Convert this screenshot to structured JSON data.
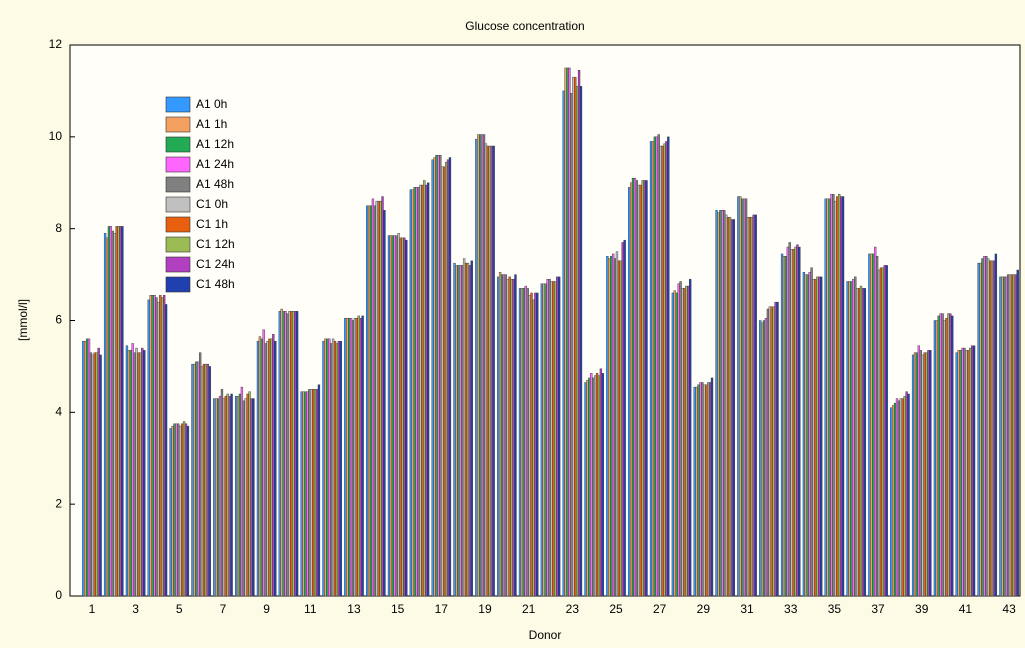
{
  "chart_data": {
    "type": "bar",
    "title": "Glucose concentration",
    "x_label": "Donor",
    "y_label": "[mmol/l]",
    "categories": [
      "1",
      null,
      "3",
      null,
      "5",
      null,
      "7",
      null,
      "9",
      null,
      "11",
      null,
      "13",
      null,
      "15",
      null,
      "17",
      null,
      "19",
      null,
      "21",
      null,
      "23",
      null,
      "25",
      null,
      "27",
      null,
      "29",
      null,
      "31",
      null,
      "33",
      null,
      "35",
      null,
      "37",
      null,
      "39",
      null,
      "41",
      null,
      "43"
    ],
    "ylim": [
      0,
      12
    ],
    "yticks": [
      0,
      2,
      4,
      6,
      8,
      10,
      12
    ],
    "legend": "upper left",
    "series": [
      {
        "name": "A1 0h",
        "color": "#3399ff",
        "values": [
          5.55,
          7.9,
          5.45,
          6.45,
          3.65,
          5.05,
          4.3,
          4.35,
          5.55,
          6.2,
          4.45,
          5.55,
          6.05,
          8.5,
          7.85,
          8.85,
          9.5,
          7.25,
          9.95,
          6.95,
          6.7,
          6.8,
          11.0,
          4.65,
          7.4,
          8.9,
          9.9,
          6.6,
          4.55,
          8.4,
          8.7,
          6.0,
          7.45,
          7.05,
          8.65,
          6.85,
          7.45,
          4.1,
          5.25,
          6.0,
          5.3,
          7.25,
          6.95
        ]
      },
      {
        "name": "A1 1h",
        "color": "#f4a060",
        "values": [
          5.55,
          7.8,
          5.35,
          6.55,
          3.7,
          5.05,
          4.3,
          4.35,
          5.65,
          6.25,
          4.45,
          5.6,
          6.05,
          8.5,
          7.85,
          8.85,
          9.55,
          7.2,
          10.05,
          7.05,
          6.7,
          6.8,
          11.5,
          4.7,
          7.35,
          9.0,
          9.9,
          6.65,
          4.55,
          8.35,
          8.7,
          5.95,
          7.4,
          7.0,
          8.65,
          6.85,
          7.45,
          4.15,
          5.3,
          6.0,
          5.35,
          7.25,
          6.95
        ]
      },
      {
        "name": "A1 12h",
        "color": "#22aa55",
        "values": [
          5.6,
          8.05,
          5.35,
          6.55,
          3.75,
          5.1,
          4.3,
          4.4,
          5.6,
          6.2,
          4.45,
          5.6,
          6.05,
          8.5,
          7.85,
          8.9,
          9.6,
          7.2,
          10.05,
          7.0,
          6.7,
          6.8,
          11.5,
          4.75,
          7.4,
          9.1,
          10.0,
          6.6,
          4.6,
          8.4,
          8.65,
          6.0,
          7.4,
          7.0,
          8.65,
          6.85,
          7.45,
          4.2,
          5.3,
          6.1,
          5.35,
          7.35,
          6.95
        ]
      },
      {
        "name": "A1 24h",
        "color": "#ff66ff",
        "values": [
          5.6,
          8.05,
          5.5,
          6.55,
          3.75,
          5.1,
          4.35,
          4.55,
          5.8,
          6.2,
          4.45,
          5.6,
          6.05,
          8.65,
          7.85,
          8.9,
          9.6,
          7.2,
          10.05,
          7.0,
          6.75,
          6.9,
          11.5,
          4.85,
          7.45,
          9.1,
          10.0,
          6.8,
          4.65,
          8.4,
          8.65,
          6.05,
          7.6,
          7.05,
          8.75,
          6.9,
          7.6,
          4.3,
          5.45,
          6.15,
          5.4,
          7.4,
          6.95
        ]
      },
      {
        "name": "A1 48h",
        "color": "#808080",
        "values": [
          5.3,
          7.95,
          5.3,
          6.5,
          3.75,
          5.3,
          4.5,
          4.25,
          5.5,
          6.15,
          4.5,
          5.5,
          6.0,
          8.5,
          7.85,
          8.9,
          9.6,
          7.2,
          10.05,
          7.0,
          6.7,
          6.9,
          10.95,
          4.75,
          7.35,
          9.05,
          10.05,
          6.85,
          4.65,
          8.4,
          8.65,
          6.25,
          7.7,
          7.15,
          8.75,
          6.95,
          7.4,
          4.25,
          5.35,
          6.15,
          5.4,
          7.4,
          7.0
        ]
      },
      {
        "name": "C1 0h",
        "color": "#c0c0c0",
        "values": [
          5.25,
          7.9,
          5.4,
          6.4,
          3.7,
          5.0,
          4.3,
          4.3,
          5.55,
          6.2,
          4.5,
          5.6,
          6.05,
          8.6,
          7.9,
          8.95,
          9.35,
          7.35,
          9.85,
          6.9,
          6.55,
          6.85,
          11.3,
          4.8,
          7.5,
          8.95,
          9.8,
          6.7,
          4.6,
          8.3,
          8.25,
          6.3,
          7.55,
          6.9,
          8.6,
          6.7,
          7.1,
          4.3,
          5.25,
          6.0,
          5.35,
          7.35,
          7.0
        ]
      },
      {
        "name": "C1 1h",
        "color": "#e8600f",
        "values": [
          5.3,
          8.05,
          5.3,
          6.55,
          3.75,
          5.05,
          4.35,
          4.4,
          5.6,
          6.2,
          4.5,
          5.55,
          6.05,
          8.6,
          7.8,
          8.95,
          9.35,
          7.25,
          9.8,
          6.95,
          6.6,
          6.85,
          11.3,
          4.85,
          7.3,
          8.95,
          9.8,
          6.7,
          4.6,
          8.25,
          8.25,
          6.3,
          7.55,
          6.9,
          8.7,
          6.7,
          7.15,
          4.3,
          5.3,
          6.05,
          5.35,
          7.3,
          7.0
        ]
      },
      {
        "name": "C1 12h",
        "color": "#9bbb55",
        "values": [
          5.3,
          8.05,
          5.3,
          6.5,
          3.8,
          5.05,
          4.4,
          4.45,
          5.6,
          6.2,
          4.5,
          5.5,
          6.1,
          8.6,
          7.8,
          9.05,
          9.45,
          7.25,
          9.8,
          6.9,
          6.45,
          6.85,
          11.1,
          4.8,
          7.3,
          9.05,
          9.85,
          6.75,
          4.65,
          8.25,
          8.25,
          6.3,
          7.6,
          6.95,
          8.75,
          6.75,
          7.15,
          4.35,
          5.3,
          6.15,
          5.4,
          7.3,
          7.0
        ]
      },
      {
        "name": "C1 24h",
        "color": "#b040c0",
        "values": [
          5.4,
          8.05,
          5.4,
          6.55,
          3.75,
          5.05,
          4.35,
          4.3,
          5.7,
          6.2,
          4.5,
          5.55,
          6.05,
          8.7,
          7.8,
          8.95,
          9.5,
          7.2,
          9.8,
          6.9,
          6.6,
          6.95,
          11.45,
          4.95,
          7.7,
          9.05,
          9.9,
          6.75,
          4.65,
          8.2,
          8.3,
          6.4,
          7.65,
          6.95,
          8.7,
          6.7,
          7.2,
          4.45,
          5.35,
          6.15,
          5.45,
          7.3,
          7.0
        ]
      },
      {
        "name": "C1 48h",
        "color": "#2040b0",
        "values": [
          5.25,
          8.05,
          5.35,
          6.35,
          3.7,
          5.0,
          4.4,
          4.3,
          5.55,
          6.2,
          4.6,
          5.55,
          6.1,
          8.4,
          7.75,
          9.0,
          9.55,
          7.3,
          9.8,
          7.0,
          6.6,
          6.95,
          11.1,
          4.85,
          7.75,
          9.05,
          10.0,
          6.9,
          4.75,
          8.2,
          8.3,
          6.4,
          7.6,
          6.95,
          8.7,
          6.7,
          7.2,
          4.4,
          5.35,
          6.1,
          5.45,
          7.45,
          7.1
        ]
      }
    ]
  }
}
